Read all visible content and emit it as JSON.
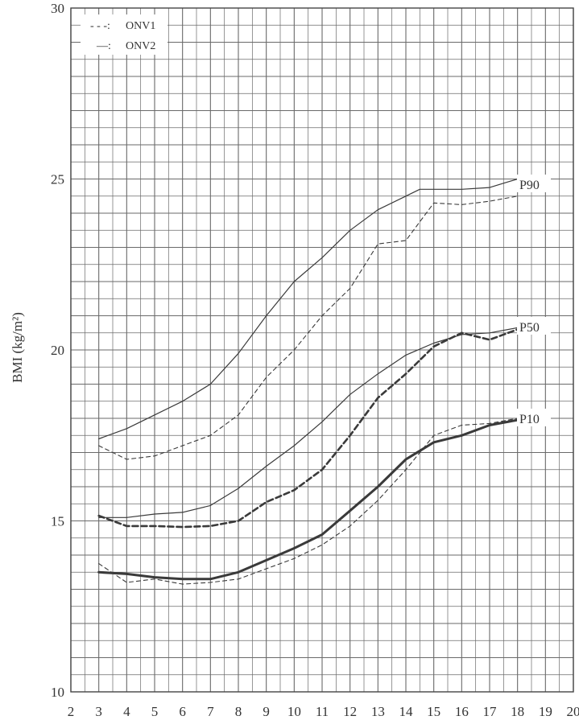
{
  "chart_data": {
    "type": "line",
    "title": "",
    "xlabel": "",
    "ylabel": "BMI (kg/m²)",
    "xlim": [
      2,
      20
    ],
    "ylim": [
      10,
      30
    ],
    "xticks": [
      "2",
      "3",
      "4",
      "5",
      "6",
      "7",
      "8",
      "9",
      "10",
      "11",
      "12",
      "13",
      "14",
      "15",
      "16",
      "17",
      "18",
      "19",
      "20"
    ],
    "yticks": [
      "10",
      "15",
      "20",
      "25",
      "30"
    ],
    "grid": true,
    "legend_position": "top-left",
    "legend": [
      {
        "key": "ONV1",
        "marker": "- - -:",
        "label": "ONV1",
        "style": "dashed"
      },
      {
        "key": "ONV2",
        "marker": "—:",
        "label": "ONV2",
        "style": "solid"
      }
    ],
    "series": [
      {
        "name": "ONV2",
        "percentile": "P90",
        "style": "thin-solid",
        "x": [
          3,
          4,
          5,
          6,
          7,
          8,
          9,
          10,
          11,
          12,
          13,
          14,
          14.5,
          15,
          16,
          17,
          18
        ],
        "y": [
          17.4,
          17.7,
          18.1,
          18.5,
          19.0,
          19.9,
          21.0,
          22.0,
          22.7,
          23.5,
          24.1,
          24.5,
          24.7,
          24.7,
          24.7,
          24.75,
          25.0
        ]
      },
      {
        "name": "ONV1",
        "percentile": "P90",
        "style": "thin-dashed",
        "x": [
          3,
          4,
          5,
          6,
          7,
          8,
          9,
          10,
          11,
          12,
          13,
          14,
          15,
          16,
          17,
          18
        ],
        "y": [
          17.2,
          16.8,
          16.9,
          17.2,
          17.5,
          18.1,
          19.2,
          20.0,
          21.0,
          21.8,
          23.1,
          23.2,
          24.3,
          24.25,
          24.35,
          24.5
        ]
      },
      {
        "name": "ONV2",
        "percentile": "P50",
        "style": "thin-solid",
        "x": [
          3,
          4,
          5,
          6,
          7,
          8,
          9,
          10,
          11,
          12,
          13,
          14,
          15,
          16,
          17,
          18
        ],
        "y": [
          15.1,
          15.1,
          15.2,
          15.25,
          15.45,
          15.95,
          16.6,
          17.2,
          17.9,
          18.7,
          19.3,
          19.85,
          20.2,
          20.45,
          20.5,
          20.65
        ]
      },
      {
        "name": "ONV1",
        "percentile": "P50",
        "style": "thick-dashed",
        "x": [
          3,
          4,
          5,
          6,
          7,
          8,
          9,
          10,
          11,
          12,
          13,
          14,
          15,
          16,
          17,
          18
        ],
        "y": [
          15.15,
          14.85,
          14.85,
          14.82,
          14.85,
          15.0,
          15.55,
          15.9,
          16.5,
          17.5,
          18.6,
          19.3,
          20.1,
          20.5,
          20.3,
          20.6
        ]
      },
      {
        "name": "ONV1",
        "percentile": "P10",
        "style": "thin-dashed",
        "x": [
          3,
          4,
          5,
          6,
          7,
          8,
          9,
          10,
          11,
          12,
          13,
          14,
          15,
          16,
          17,
          18
        ],
        "y": [
          13.75,
          13.2,
          13.3,
          13.15,
          13.2,
          13.3,
          13.6,
          13.9,
          14.3,
          14.85,
          15.6,
          16.5,
          17.5,
          17.8,
          17.85,
          18.0
        ]
      },
      {
        "name": "ONV2",
        "percentile": "P10",
        "style": "thick-solid",
        "x": [
          3,
          4,
          5,
          6,
          7,
          8,
          9,
          10,
          11,
          12,
          13,
          14,
          15,
          16,
          17,
          18
        ],
        "y": [
          13.5,
          13.45,
          13.35,
          13.3,
          13.3,
          13.5,
          13.85,
          14.2,
          14.6,
          15.3,
          16.0,
          16.8,
          17.3,
          17.5,
          17.8,
          17.95
        ]
      }
    ],
    "curve_labels": [
      "P90",
      "P50",
      "P10"
    ]
  }
}
